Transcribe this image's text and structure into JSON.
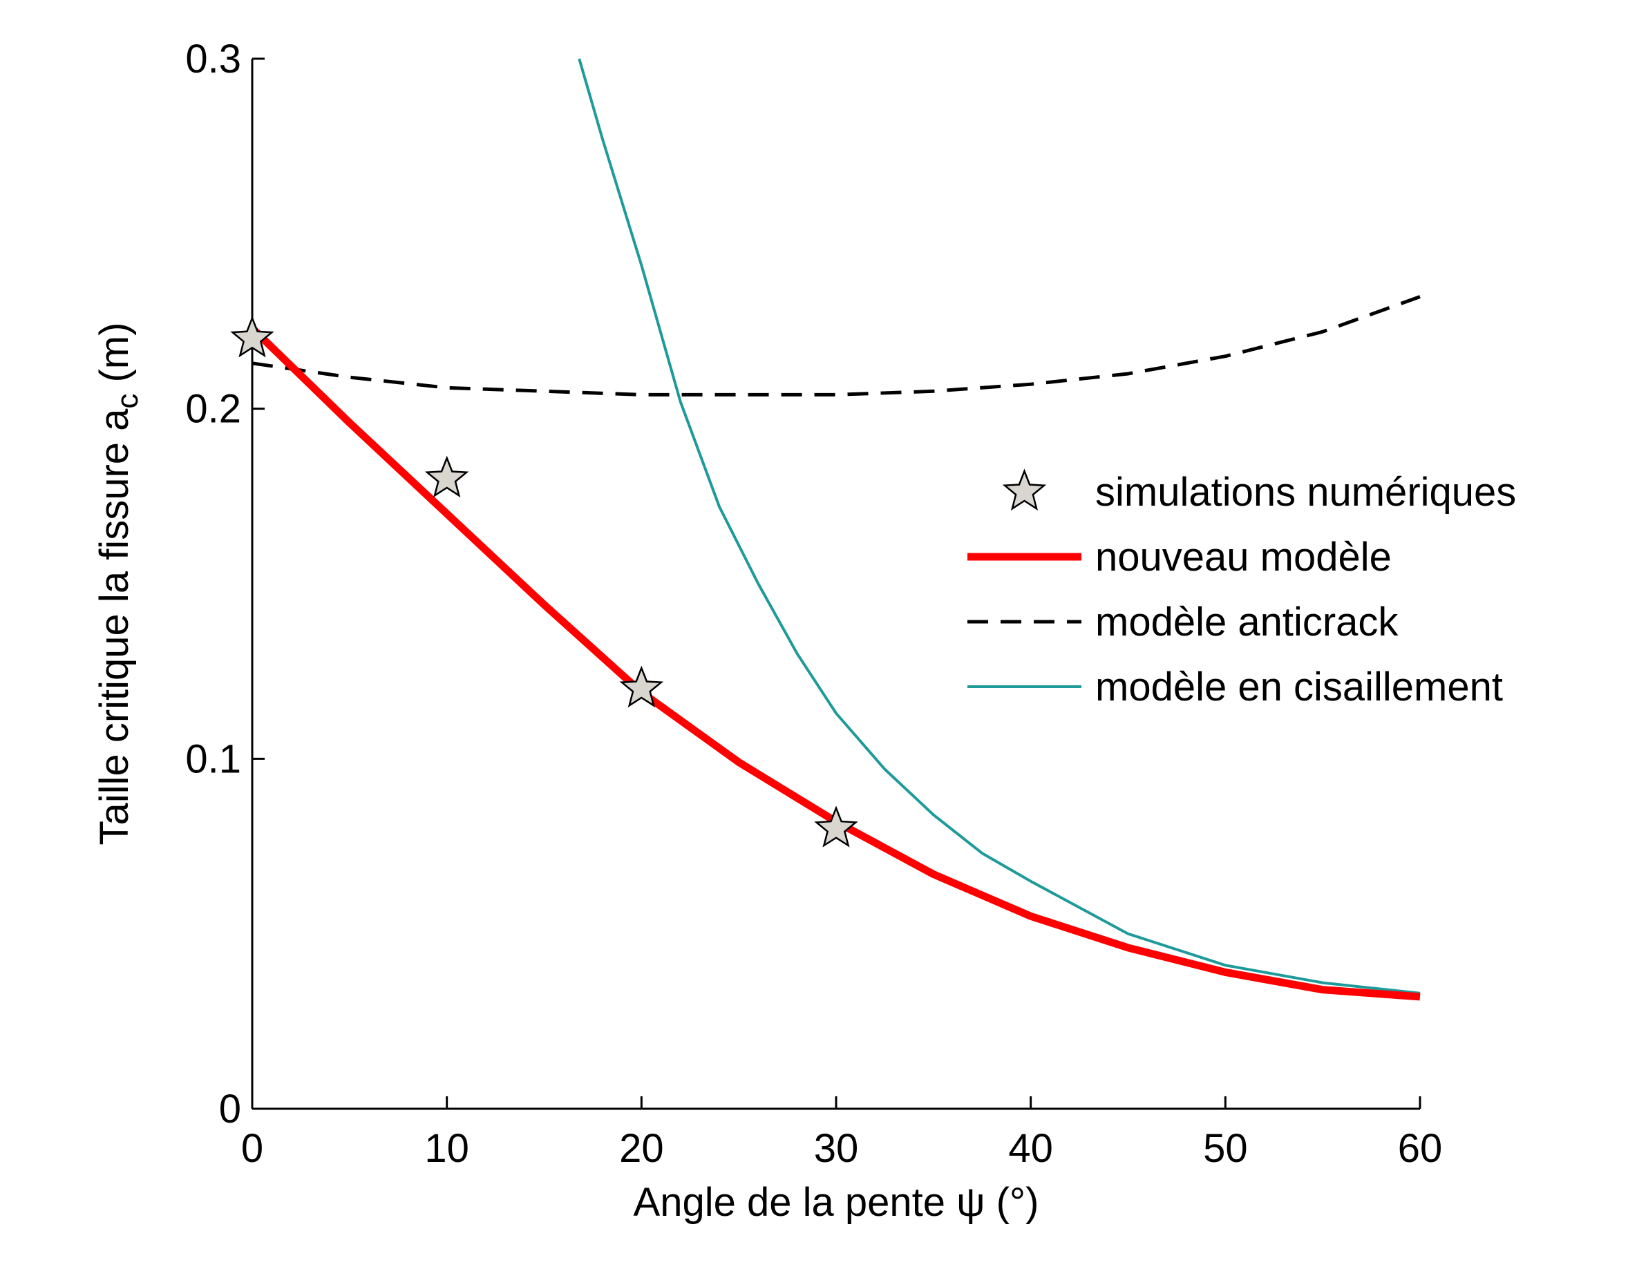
{
  "chart_data": {
    "type": "line",
    "title": "",
    "xlabel": "Angle de la pente ψ (°)",
    "ylabel_main": "Taille critique la fissure a",
    "ylabel_subscript": "c",
    "ylabel_unit": " (m)",
    "xlim": [
      0,
      60
    ],
    "ylim": [
      0,
      0.3
    ],
    "x_ticks": [
      0,
      10,
      20,
      30,
      40,
      50,
      60
    ],
    "x_tick_labels": [
      "0",
      "10",
      "20",
      "30",
      "40",
      "50",
      "60"
    ],
    "y_ticks": [
      0,
      0.1,
      0.2,
      0.3
    ],
    "y_tick_labels": [
      "0",
      "0.1",
      "0.2",
      "0.3"
    ],
    "grid": false,
    "legend_position": "center-right",
    "series": [
      {
        "key": "sim",
        "name": "simulations numériques",
        "kind": "markers",
        "marker": "star",
        "color": "#d9d6d0",
        "x": [
          0,
          10,
          20,
          30
        ],
        "y": [
          0.22,
          0.18,
          0.12,
          0.08
        ]
      },
      {
        "key": "nouveau",
        "name": "nouveau modèle",
        "kind": "line",
        "color": "#ff0000",
        "dash": "solid",
        "x": [
          0,
          5,
          10,
          15,
          20,
          25,
          30,
          35,
          40,
          45,
          50,
          55,
          60
        ],
        "y": [
          0.223,
          0.196,
          0.17,
          0.144,
          0.119,
          0.099,
          0.082,
          0.067,
          0.055,
          0.046,
          0.039,
          0.034,
          0.032
        ]
      },
      {
        "key": "anticrack",
        "name": "modèle anticrack",
        "kind": "line",
        "color": "#000000",
        "dash": "dashed",
        "x": [
          0,
          5,
          10,
          15,
          20,
          25,
          30,
          35,
          40,
          45,
          50,
          55,
          60
        ],
        "y": [
          0.213,
          0.209,
          0.206,
          0.205,
          0.204,
          0.204,
          0.204,
          0.205,
          0.207,
          0.21,
          0.215,
          0.222,
          0.232
        ]
      },
      {
        "key": "cisaillement",
        "name": "modèle en cisaillement",
        "kind": "line",
        "color": "#1f9a9a",
        "dash": "solid",
        "x": [
          16.8,
          18,
          20,
          22,
          24,
          26,
          28,
          30,
          32.5,
          35,
          37.5,
          40,
          45,
          50,
          55,
          60
        ],
        "y": [
          0.3,
          0.277,
          0.241,
          0.202,
          0.172,
          0.15,
          0.13,
          0.113,
          0.097,
          0.084,
          0.073,
          0.065,
          0.05,
          0.041,
          0.036,
          0.033
        ]
      }
    ]
  }
}
